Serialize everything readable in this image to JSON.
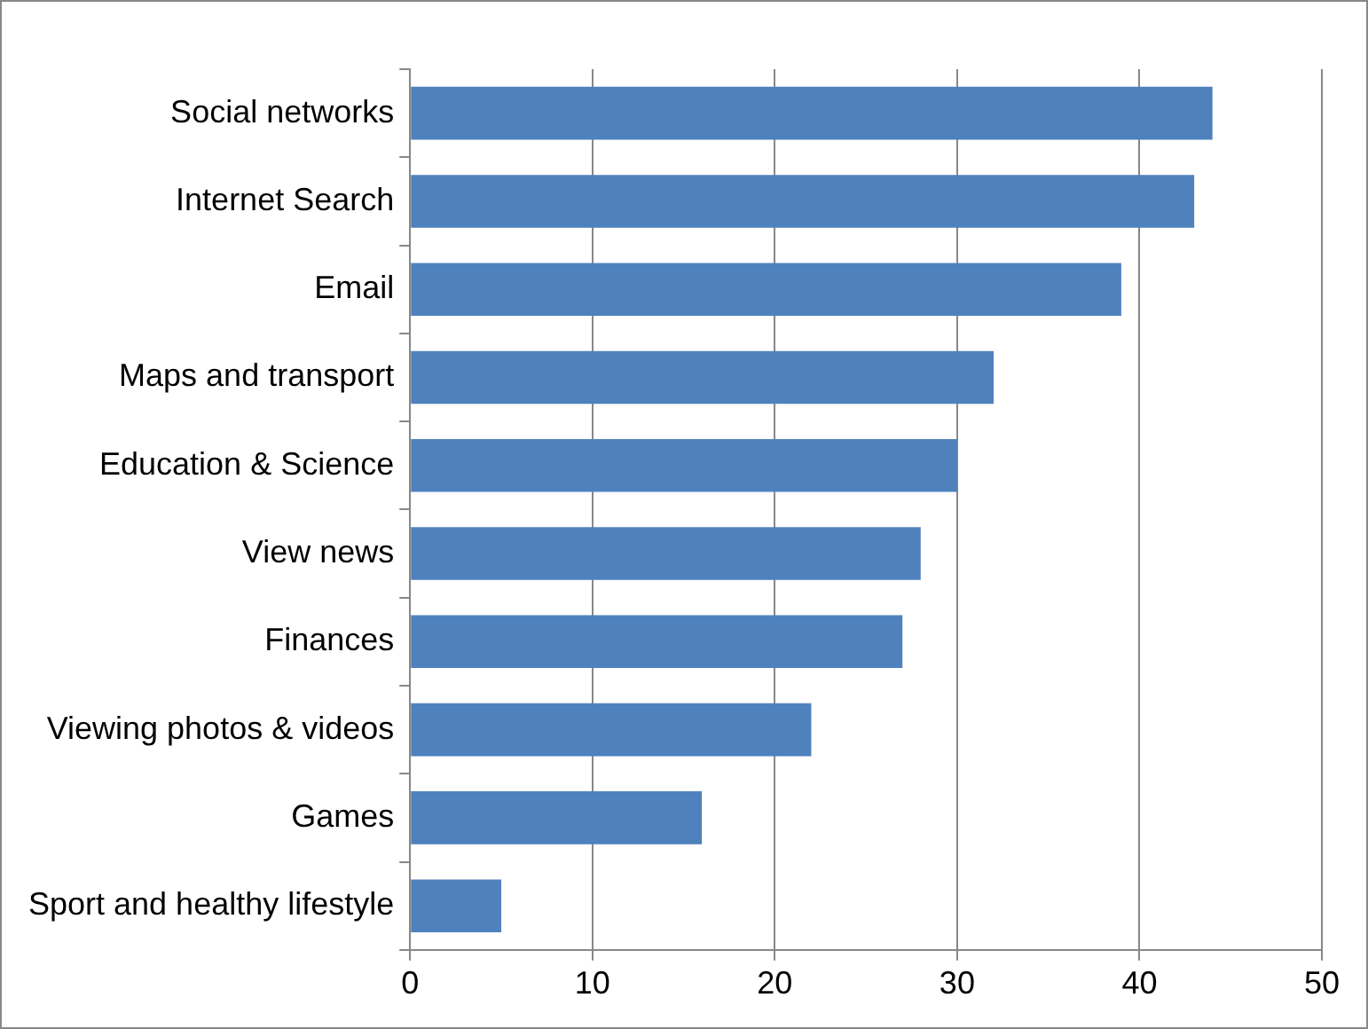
{
  "chart_data": {
    "type": "bar",
    "orientation": "horizontal",
    "categories": [
      "Social networks",
      "Internet Search",
      "Email",
      "Maps and transport",
      "Education & Science",
      "View news",
      "Finances",
      "Viewing photos & videos",
      "Games",
      "Sport and healthy lifestyle"
    ],
    "values": [
      44,
      43,
      39,
      32,
      30,
      28,
      27,
      22,
      16,
      5
    ],
    "color": "#4f81bd",
    "xlim": [
      0,
      50
    ],
    "xticks": [
      0,
      10,
      20,
      30,
      40,
      50
    ],
    "grid": "x"
  }
}
